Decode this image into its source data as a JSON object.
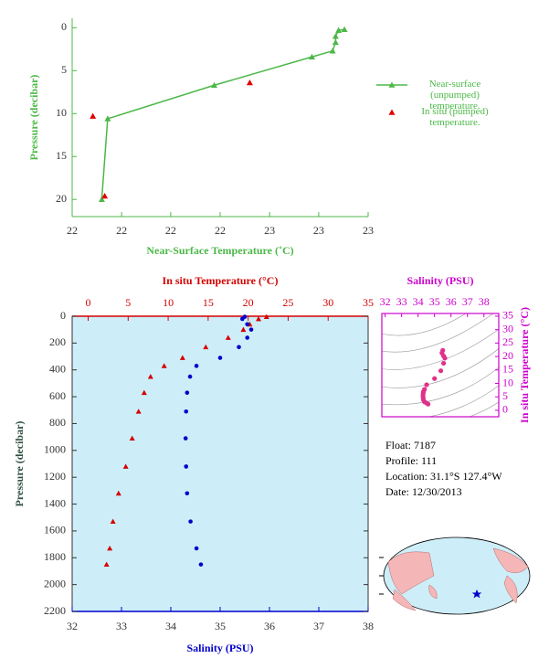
{
  "chart_data": [
    {
      "type": "line",
      "ylabel": "Pressure (decibar)",
      "xlabel": "Near-Surface Temperature (˚C)",
      "xlim": [
        22,
        23
      ],
      "xticks": [
        22,
        {
          "value": 22.167,
          "label": "22"
        },
        {
          "value": 22.333,
          "label": "22"
        },
        {
          "value": 22.5,
          "label": "22"
        },
        {
          "value": 22.667,
          "label": "23"
        },
        {
          "value": 22.833,
          "label": "23"
        },
        23
      ],
      "ylim": [
        -1.1,
        22
      ],
      "y_inverted": true,
      "yticks": [
        0,
        5,
        10,
        15,
        20
      ],
      "axis_color": "#4cb848",
      "legend": "right",
      "series": [
        {
          "name": "Near-surface (unpumped) temperature.",
          "color": "#4cb848",
          "line": true,
          "x": [
            22.92,
            22.9,
            22.89,
            22.89,
            22.88,
            22.81,
            22.48,
            22.12,
            22.1
          ],
          "values": [
            0.2,
            0.3,
            1.0,
            1.7,
            2.7,
            3.4,
            6.7,
            10.6,
            20.0
          ]
        },
        {
          "name": "In situ (pumped) temperature.",
          "color": "#e00000",
          "line": false,
          "x": [
            22.07,
            22.6,
            22.11
          ],
          "values": [
            10.3,
            6.4,
            19.6
          ]
        }
      ]
    },
    {
      "type": "profile",
      "ylabel": "Pressure (decibar)",
      "xlabel": "Salinity (PSU)",
      "x2label": "In situ Temperature (°C)",
      "xlim": [
        32,
        38
      ],
      "xticks": [
        32,
        33,
        34,
        35,
        36,
        37,
        38
      ],
      "x2lim": [
        -2,
        35
      ],
      "x2ticks": [
        0,
        5,
        10,
        15,
        20,
        25,
        30,
        35
      ],
      "ylim": [
        0,
        2200
      ],
      "y_inverted": true,
      "yticks": [
        0,
        200,
        400,
        600,
        800,
        1000,
        1200,
        1400,
        1600,
        1800,
        2000,
        2200
      ],
      "background": "#cdeef9",
      "y": [
        4,
        20,
        60,
        100,
        160,
        230,
        310,
        370,
        450,
        570,
        710,
        910,
        1120,
        1320,
        1530,
        1730,
        1850
      ],
      "series": [
        {
          "color": "#d40000",
          "marker": "triangle",
          "axis": "x2",
          "values": [
            22.3,
            21.3,
            20.2,
            19.4,
            17.5,
            14.7,
            11.8,
            9.5,
            7.8,
            7.0,
            6.3,
            5.5,
            4.7,
            3.8,
            3.1,
            2.7,
            2.3
          ]
        },
        {
          "color": "#0000cc",
          "marker": "circle",
          "axis": "x",
          "values": [
            35.5,
            35.45,
            35.55,
            35.63,
            35.55,
            35.38,
            35.0,
            34.52,
            34.39,
            34.33,
            34.31,
            34.3,
            34.31,
            34.33,
            34.4,
            34.52,
            34.61
          ]
        }
      ]
    },
    {
      "type": "scatter",
      "xlabel": "Salinity (PSU)",
      "ylabel": "In situ Temperature (°C)",
      "xlim": [
        31.8,
        38.9
      ],
      "xticks": [
        32,
        33,
        34,
        35,
        36,
        37,
        38
      ],
      "ylim": [
        -2.4,
        36
      ],
      "yticks": [
        0,
        5,
        10,
        15,
        20,
        25,
        30,
        35
      ],
      "color": "#e0308a",
      "axis_color": "#cc00cc"
    }
  ],
  "info": {
    "lines": [
      "Float:  7187",
      "Profile:  111",
      "Location:  31.1°S  127.4°W",
      "Date:  12/30/2013"
    ]
  }
}
